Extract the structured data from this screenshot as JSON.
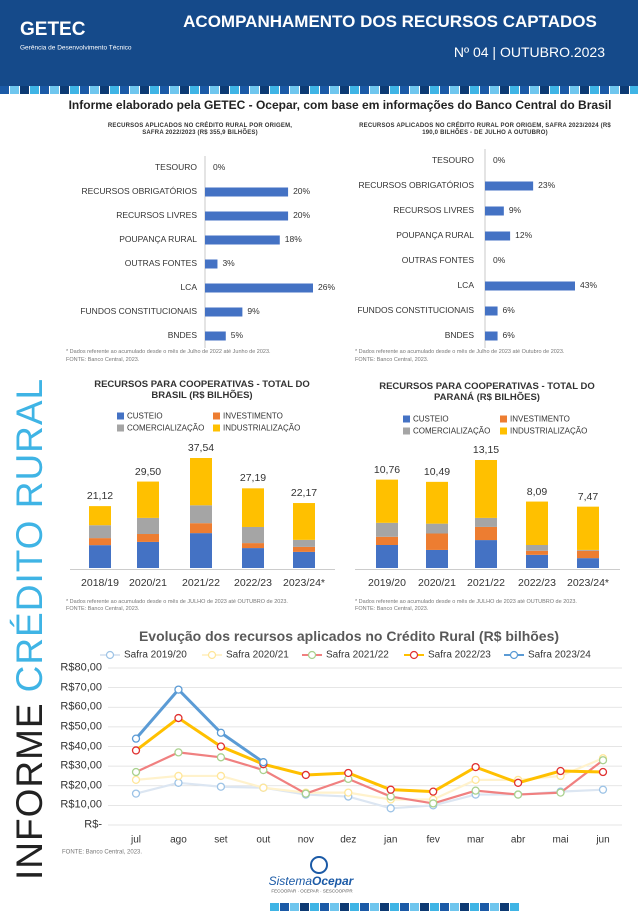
{
  "header": {
    "logo": "GETEC",
    "logo_subtitle": "Gerência de Desenvolvimento Técnico",
    "title": "ACOMPANHAMENTO DOS RECURSOS CAPTADOS",
    "issue": "Nº 04 | OUTUBRO.2023"
  },
  "intro": "Informe elaborado pela GETEC - Ocepar, com base em informações do Banco Central do Brasil",
  "side_title": {
    "part1": "INFORME",
    "part2": "CRÉDITO RURAL"
  },
  "chart_data": [
    {
      "type": "hbar",
      "title": "RECURSOS APLICADOS NO CRÉDITO RURAL POR ORIGEM, SAFRA 2022/2023 (R$ 355,9 BILHÕES)",
      "categories": [
        "TESOURO",
        "RECURSOS OBRIGATÓRIOS",
        "RECURSOS LIVRES",
        "POUPANÇA RURAL",
        "OUTRAS FONTES",
        "LCA",
        "FUNDOS CONSTITUCIONAIS",
        "BNDES"
      ],
      "values": [
        0,
        20,
        20,
        18,
        3,
        26,
        9,
        5
      ],
      "value_labels": [
        "0%",
        "20%",
        "20%",
        "18%",
        "3%",
        "26%",
        "9%",
        "5%"
      ],
      "color": "#4472c4",
      "note": "* Dados referente ao acumulado desde o mês de Julho de 2022 até Junho de 2023.",
      "source": "FONTE: Banco Central, 2023."
    },
    {
      "type": "hbar",
      "title": "RECURSOS APLICADOS NO CRÉDITO RURAL POR ORIGEM, SAFRA 2023/2024 (R$ 190,0 BILHÕES - DE JULHO A OUTUBRO)",
      "categories": [
        "TESOURO",
        "RECURSOS OBRIGATÓRIOS",
        "RECURSOS LIVRES",
        "POUPANÇA RURAL",
        "OUTRAS FONTES",
        "LCA",
        "FUNDOS CONSTITUCIONAIS",
        "BNDES"
      ],
      "values": [
        0,
        23,
        9,
        12,
        0,
        43,
        6,
        6
      ],
      "value_labels": [
        "0%",
        "23%",
        "9%",
        "12%",
        "0%",
        "43%",
        "6%",
        "6%"
      ],
      "color": "#4472c4",
      "note": "* Dados referente ao acumulado desde o mês de Julho de 2023 até Outubro de 2023.",
      "source": "FONTE: Banco Central, 2023."
    },
    {
      "type": "stacked_bar",
      "title": "RECURSOS PARA COOPERATIVAS - TOTAL DO BRASIL (R$ BILHÕES)",
      "categories": [
        "2018/19",
        "2020/21",
        "2021/22",
        "2022/23",
        "2023/24*"
      ],
      "series": [
        {
          "name": "CUSTEIO",
          "color": "#4472c4",
          "values": [
            7.8,
            8.9,
            11.9,
            6.8,
            5.5
          ]
        },
        {
          "name": "INVESTIMENTO",
          "color": "#ed7d31",
          "values": [
            2.4,
            2.7,
            3.4,
            1.7,
            1.7
          ]
        },
        {
          "name": "COMERCIALIZAÇÃO",
          "color": "#a5a5a5",
          "values": [
            4.4,
            5.5,
            6.1,
            5.5,
            2.4
          ]
        },
        {
          "name": "INDUSTRIALIZAÇÃO",
          "color": "#ffc000",
          "values": [
            6.52,
            12.4,
            16.14,
            13.19,
            12.57
          ]
        }
      ],
      "totals": [
        21.12,
        29.5,
        37.54,
        27.19,
        22.17
      ],
      "total_labels": [
        "21,12",
        "29,50",
        "37,54",
        "27,19",
        "22,17"
      ],
      "note": "* Dados referente ao acumulado desde o mês de JULHO de 2023 até OUTUBRO de 2023.",
      "source": "FONTE: Banco Central, 2023."
    },
    {
      "type": "stacked_bar",
      "title": "RECURSOS PARA COOPERATIVAS - TOTAL DO PARANÁ (R$ BILHÕES)",
      "categories": [
        "2019/20",
        "2020/21",
        "2021/22",
        "2022/23",
        "2023/24*"
      ],
      "series": [
        {
          "name": "CUSTEIO",
          "color": "#4472c4",
          "values": [
            2.8,
            2.2,
            3.4,
            1.6,
            1.2
          ]
        },
        {
          "name": "INVESTIMENTO",
          "color": "#ed7d31",
          "values": [
            1.0,
            2.0,
            1.6,
            0.5,
            0.9
          ]
        },
        {
          "name": "COMERCIALIZAÇÃO",
          "color": "#a5a5a5",
          "values": [
            1.7,
            1.2,
            1.1,
            0.7,
            0.1
          ]
        },
        {
          "name": "INDUSTRIALIZAÇÃO",
          "color": "#ffc000",
          "values": [
            5.26,
            5.09,
            7.05,
            5.29,
            5.27
          ]
        }
      ],
      "totals": [
        10.76,
        10.49,
        13.15,
        8.09,
        7.47
      ],
      "total_labels": [
        "10,76",
        "10,49",
        "13,15",
        "8,09",
        "7,47"
      ],
      "note": "* Dados referente ao acumulado desde o mês de JULHO de 2023 até OUTUBRO de 2023.",
      "source": "FONTE: Banco Central, 2023."
    },
    {
      "type": "line",
      "title": "Evolução dos recursos aplicados no Crédito Rural (R$ bilhões)",
      "categories": [
        "jul",
        "ago",
        "set",
        "out",
        "nov",
        "dez",
        "jan",
        "fev",
        "mar",
        "abr",
        "mai",
        "jun"
      ],
      "ylim": [
        0,
        80
      ],
      "yticks": [
        {
          "value": 0,
          "label": "R$-"
        },
        {
          "value": 10,
          "label": "R$10,00"
        },
        {
          "value": 20,
          "label": "R$20,00"
        },
        {
          "value": 30,
          "label": "R$30,00"
        },
        {
          "value": 40,
          "label": "R$40,00"
        },
        {
          "value": 50,
          "label": "R$50,00"
        },
        {
          "value": 60,
          "label": "R$60,00"
        },
        {
          "value": 70,
          "label": "R$70,00"
        },
        {
          "value": 80,
          "label": "R$80,00"
        }
      ],
      "grid": true,
      "legend": "top",
      "series": [
        {
          "name": "Safra 2019/20",
          "color": "#dce6f2",
          "marker_color": "#9dc3e6",
          "values": [
            16,
            21.5,
            19.5,
            19,
            15.5,
            14.5,
            8.5,
            10,
            15.5,
            15.5,
            17,
            18
          ]
        },
        {
          "name": "Safra 2020/21",
          "color": "#fff2cc",
          "marker_color": "#ffe699",
          "values": [
            23,
            25,
            25,
            19,
            16.5,
            16.5,
            13,
            13,
            23,
            23,
            25,
            34
          ]
        },
        {
          "name": "Safra 2021/22",
          "color": "#f08080",
          "marker_color": "#a9d18e",
          "values": [
            27,
            37,
            34.5,
            28,
            16,
            23.5,
            14.5,
            11,
            17.5,
            15.5,
            16.5,
            33
          ]
        },
        {
          "name": "Safra 2022/23",
          "color": "#ffc000",
          "marker_color": "#e03030",
          "values": [
            38,
            54.5,
            40,
            31,
            25.5,
            26.5,
            18,
            17,
            29.5,
            21.5,
            27.5,
            27
          ]
        },
        {
          "name": "Safra 2023/24",
          "color": "#5b9bd5",
          "marker_color": "#5b9bd5",
          "values": [
            44,
            69,
            47,
            32,
            null,
            null,
            null,
            null,
            null,
            null,
            null,
            null
          ]
        }
      ],
      "source": "FONTE: Banco Central, 2023."
    }
  ],
  "footer": {
    "brand_1": "Sistema",
    "brand_2": "Ocepar",
    "members": "FECOOPAR · OCEPAR · SESCOOP/PR"
  }
}
